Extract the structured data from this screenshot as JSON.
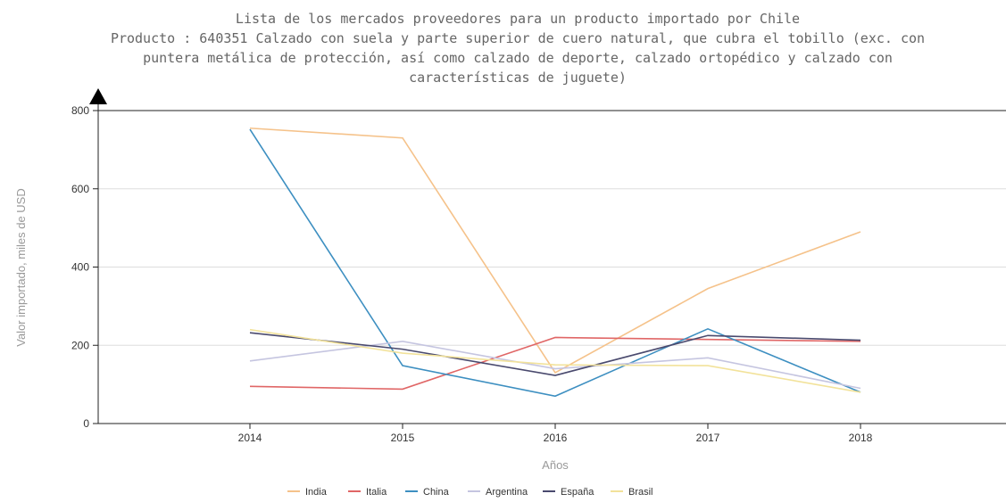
{
  "chart_data": {
    "type": "line",
    "title": [
      "Lista de los mercados proveedores para un producto importado por Chile",
      "Producto : 640351 Calzado con suela y parte superior de cuero natural, que cubra el tobillo (exc. con",
      "puntera metálica de protección, así como calzado de deporte, calzado ortopédico y calzado con",
      "características de juguete)"
    ],
    "xlabel": "Años",
    "ylabel": "Valor importado, miles de USD",
    "x": [
      "2014",
      "2015",
      "2016",
      "2017",
      "2018"
    ],
    "ylim": [
      0,
      800
    ],
    "yticks": [
      0,
      200,
      400,
      600,
      800
    ],
    "grid": true,
    "legend_position": "bottom",
    "series": [
      {
        "name": "India",
        "color": "#f5c28a",
        "values": [
          755,
          730,
          130,
          345,
          490
        ]
      },
      {
        "name": "Italia",
        "color": "#e06666",
        "values": [
          95,
          88,
          220,
          215,
          210
        ]
      },
      {
        "name": "China",
        "color": "#3d8fc1",
        "values": [
          752,
          148,
          70,
          242,
          80
        ]
      },
      {
        "name": "Argentina",
        "color": "#c5c5e0",
        "values": [
          160,
          210,
          140,
          168,
          90
        ]
      },
      {
        "name": "España",
        "color": "#4a4a6e",
        "values": [
          232,
          190,
          123,
          225,
          213
        ]
      },
      {
        "name": "Brasil",
        "color": "#f2e29a",
        "values": [
          240,
          180,
          150,
          148,
          80
        ]
      }
    ]
  }
}
